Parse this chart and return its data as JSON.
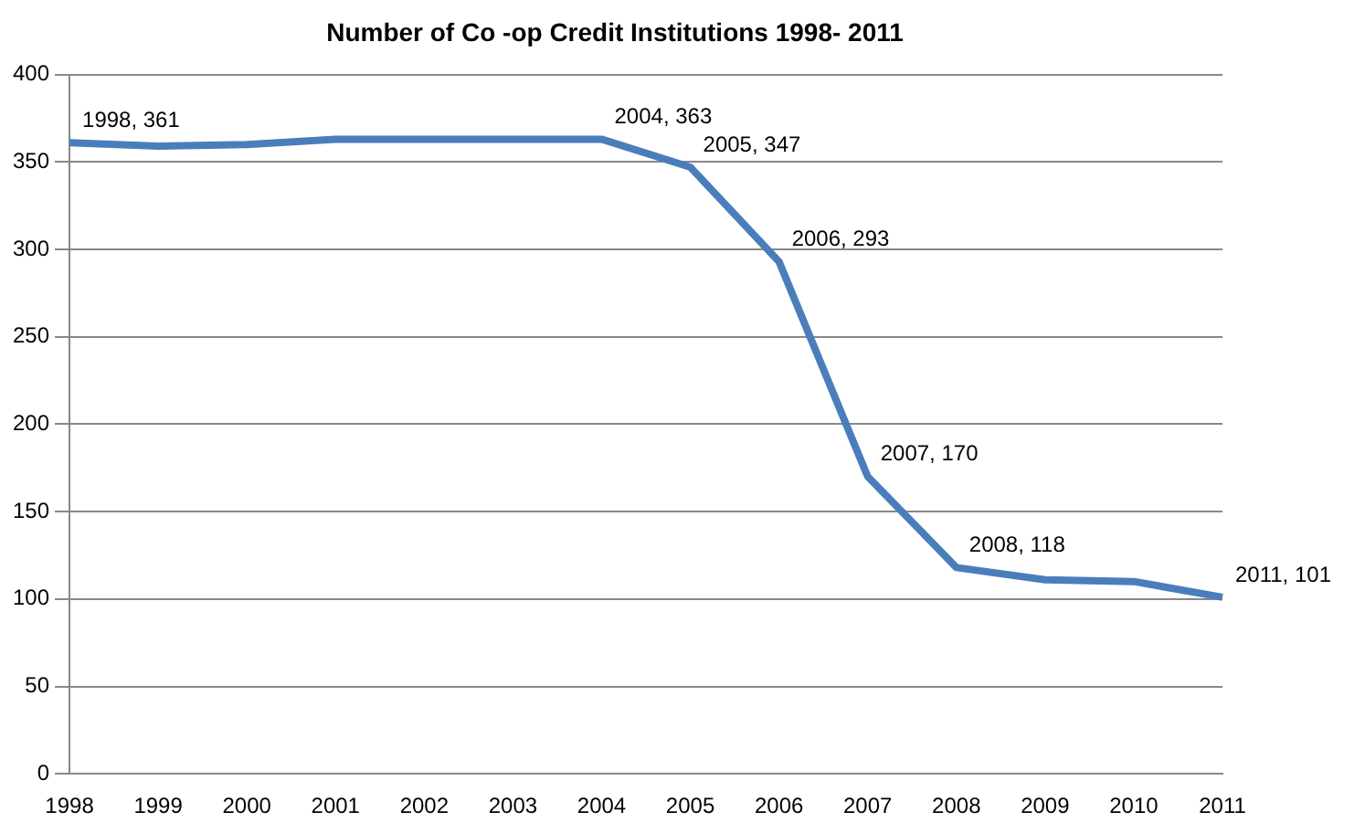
{
  "chart_data": {
    "type": "line",
    "title": "Number of Co -op Credit Institutions 1998- 2011",
    "categories": [
      "1998",
      "1999",
      "2000",
      "2001",
      "2002",
      "2003",
      "2004",
      "2005",
      "2006",
      "2007",
      "2008",
      "2009",
      "2010",
      "2011"
    ],
    "series": [
      {
        "color": "#4a7ebb",
        "values": [
          361,
          359,
          360,
          363,
          363,
          363,
          363,
          347,
          293,
          170,
          118,
          111,
          110,
          101
        ],
        "value_labels": [
          "1998, 361",
          null,
          null,
          null,
          null,
          null,
          "2004, 363",
          "2005, 347",
          "2006, 293",
          "2007, 170",
          "2008, 118",
          null,
          null,
          "2011, 101"
        ]
      }
    ],
    "ylim": [
      0,
      400
    ],
    "yticks": [
      0,
      50,
      100,
      150,
      200,
      250,
      300,
      350,
      400
    ],
    "grid": "y",
    "legend": false,
    "marker": "none",
    "line_style": "solid"
  }
}
